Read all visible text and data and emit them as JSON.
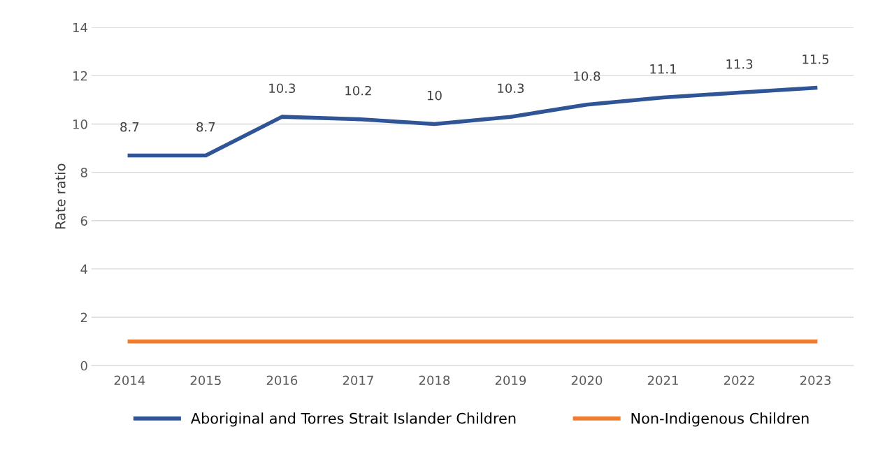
{
  "chart_data": {
    "type": "line",
    "categories": [
      "2014",
      "2015",
      "2016",
      "2017",
      "2018",
      "2019",
      "2020",
      "2021",
      "2022",
      "2023"
    ],
    "series": [
      {
        "name": "Aboriginal and Torres Strait Islander Children",
        "color": "#2f5597",
        "values": [
          8.7,
          8.7,
          10.3,
          10.2,
          10,
          10.3,
          10.8,
          11.1,
          11.3,
          11.5
        ],
        "value_labels": [
          "8.7",
          "8.7",
          "10.3",
          "10.2",
          "10",
          "10.3",
          "10.8",
          "11.1",
          "11.3",
          "11.5"
        ]
      },
      {
        "name": "Non-Indigenous Children",
        "color": "#ed7d31",
        "values": [
          1,
          1,
          1,
          1,
          1,
          1,
          1,
          1,
          1,
          1
        ]
      }
    ],
    "ylabel": "Rate ratio",
    "ylim": [
      0,
      14
    ],
    "yticks": [
      0,
      2,
      4,
      6,
      8,
      10,
      12,
      14
    ],
    "grid": "y",
    "legend": "bottom",
    "marker": "none",
    "line_style": "solid"
  }
}
